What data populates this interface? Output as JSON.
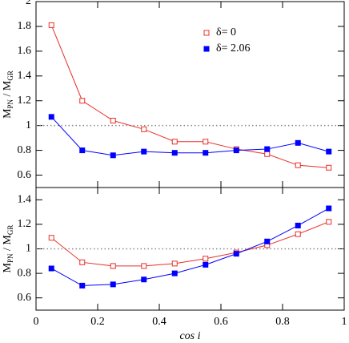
{
  "chart_data": [
    {
      "type": "line",
      "x": [
        0.05,
        0.15,
        0.25,
        0.35,
        0.45,
        0.55,
        0.65,
        0.75,
        0.85,
        0.95
      ],
      "series": [
        {
          "name": "δ= 0",
          "color": "#e8302a",
          "marker": "open",
          "values": [
            1.81,
            1.2,
            1.04,
            0.97,
            0.87,
            0.87,
            0.81,
            0.77,
            0.68,
            0.66
          ]
        },
        {
          "name": "δ= 2.06",
          "color": "#0000ff",
          "marker": "filled",
          "values": [
            1.07,
            0.8,
            0.76,
            0.79,
            0.78,
            0.78,
            0.8,
            0.81,
            0.86,
            0.79
          ]
        }
      ],
      "xlim": [
        0,
        1
      ],
      "xticks": [
        0,
        0.2,
        0.4,
        0.6,
        0.8,
        1
      ],
      "ylim": [
        0.5,
        2
      ],
      "yticks": [
        0.6,
        0.8,
        1,
        1.2,
        1.4,
        1.6,
        1.8,
        2
      ],
      "hline": 1,
      "legend": "upper right",
      "ylabel": [
        "M",
        "PN",
        " / M",
        "GR"
      ]
    },
    {
      "type": "line",
      "x": [
        0.05,
        0.15,
        0.25,
        0.35,
        0.45,
        0.55,
        0.65,
        0.75,
        0.85,
        0.95
      ],
      "series": [
        {
          "color": "#e8302a",
          "marker": "open",
          "values": [
            1.09,
            0.89,
            0.86,
            0.86,
            0.88,
            0.92,
            0.97,
            1.03,
            1.12,
            1.22
          ]
        },
        {
          "color": "#0000ff",
          "marker": "filled",
          "values": [
            0.84,
            0.7,
            0.71,
            0.75,
            0.8,
            0.87,
            0.96,
            1.06,
            1.19,
            1.33
          ]
        }
      ],
      "xlim": [
        0,
        1
      ],
      "xticks": [
        0,
        0.2,
        0.4,
        0.6,
        0.8,
        1
      ],
      "ylim": [
        0.5,
        1.5
      ],
      "yticks": [
        0.6,
        0.8,
        1,
        1.2,
        1.4
      ],
      "hline": 1,
      "xlabel": "cos i",
      "ylabel": [
        "M",
        "PN",
        " / M",
        "GR"
      ]
    }
  ]
}
